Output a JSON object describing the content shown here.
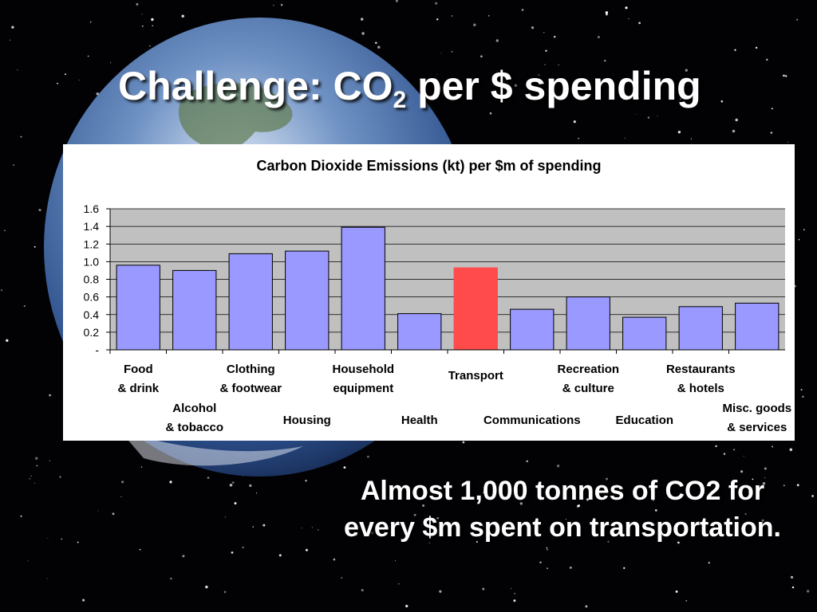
{
  "slide": {
    "title_main": "Challenge: CO",
    "title_sub": "2",
    "title_rest": " per $ spending",
    "caption": "Almost 1,000 tonnes of CO2 for every $m spent on transportation."
  },
  "colors": {
    "bar": "#9999ff",
    "highlight": "#ff4b4b",
    "plot_bg": "#c0c0c0"
  },
  "chart_data": {
    "type": "bar",
    "title": "Carbon Dioxide Emissions (kt) per $m of spending",
    "xlabel": "",
    "ylabel": "",
    "ylim": [
      0,
      1.6
    ],
    "yticks": [
      "-",
      "0.2",
      "0.4",
      "0.6",
      "0.8",
      "1.0",
      "1.2",
      "1.4",
      "1.6"
    ],
    "grid": true,
    "categories": [
      "Food\n& drink",
      "Alcohol\n& tobacco",
      "Clothing\n& footwear",
      "Housing",
      "Household\nequipment",
      "Health",
      "Transport",
      "Communications",
      "Recreation\n& culture",
      "Education",
      "Restaurants\n& hotels",
      "Misc. goods\n& services"
    ],
    "values": [
      0.96,
      0.9,
      1.09,
      1.12,
      1.39,
      0.41,
      0.93,
      0.46,
      0.6,
      0.37,
      0.49,
      0.53
    ],
    "highlight_category": "Transport"
  }
}
